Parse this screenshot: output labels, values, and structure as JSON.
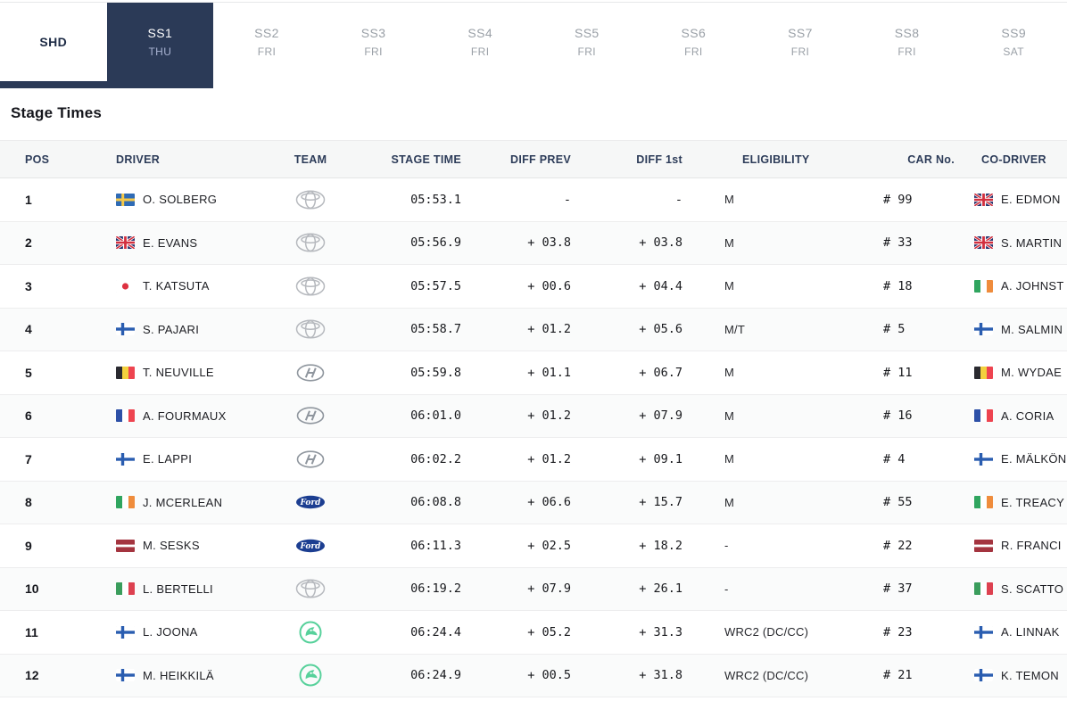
{
  "colors": {
    "accent_navy": "#2b3a57",
    "ford_blue": "#1c3e91",
    "skoda_green": "#57d19b",
    "header_bg": "#f6f7f7",
    "stripe_bg": "#fafbfb"
  },
  "tabs": [
    {
      "id": "shd",
      "label": "SHD",
      "sub": "",
      "active": false
    },
    {
      "id": "ss1",
      "label": "SS1",
      "sub": "THU",
      "active": true
    },
    {
      "id": "ss2",
      "label": "SS2",
      "sub": "FRI",
      "active": false
    },
    {
      "id": "ss3",
      "label": "SS3",
      "sub": "FRI",
      "active": false
    },
    {
      "id": "ss4",
      "label": "SS4",
      "sub": "FRI",
      "active": false
    },
    {
      "id": "ss5",
      "label": "SS5",
      "sub": "FRI",
      "active": false
    },
    {
      "id": "ss6",
      "label": "SS6",
      "sub": "FRI",
      "active": false
    },
    {
      "id": "ss7",
      "label": "SS7",
      "sub": "FRI",
      "active": false
    },
    {
      "id": "ss8",
      "label": "SS8",
      "sub": "FRI",
      "active": false
    },
    {
      "id": "ss9",
      "label": "SS9",
      "sub": "SAT",
      "active": false
    }
  ],
  "title": "Stage Times",
  "table": {
    "columns": [
      "POS",
      "DRIVER",
      "TEAM",
      "STAGE TIME",
      "DIFF PREV",
      "DIFF 1st",
      "ELIGIBILITY",
      "CAR No.",
      "CO-DRIVER"
    ],
    "rows": [
      {
        "pos": "1",
        "driver_flag": "se",
        "driver": "O. SOLBERG",
        "team": "toyota",
        "team_name": "Toyota",
        "stage_time": "05:53.1",
        "diff_prev": "-",
        "diff_first": "-",
        "eligibility": "M",
        "car_no": "# 99",
        "codriver_flag": "gb",
        "codriver": "E. EDMON"
      },
      {
        "pos": "2",
        "driver_flag": "gb",
        "driver": "E. EVANS",
        "team": "toyota",
        "team_name": "Toyota",
        "stage_time": "05:56.9",
        "diff_prev": "+ 03.8",
        "diff_first": "+ 03.8",
        "eligibility": "M",
        "car_no": "# 33",
        "codriver_flag": "gb",
        "codriver": "S. MARTIN"
      },
      {
        "pos": "3",
        "driver_flag": "jp",
        "driver": "T. KATSUTA",
        "team": "toyota",
        "team_name": "Toyota",
        "stage_time": "05:57.5",
        "diff_prev": "+ 00.6",
        "diff_first": "+ 04.4",
        "eligibility": "M",
        "car_no": "# 18",
        "codriver_flag": "ie",
        "codriver": "A. JOHNST"
      },
      {
        "pos": "4",
        "driver_flag": "fi",
        "driver": "S. PAJARI",
        "team": "toyota",
        "team_name": "Toyota",
        "stage_time": "05:58.7",
        "diff_prev": "+ 01.2",
        "diff_first": "+ 05.6",
        "eligibility": "M/T",
        "car_no": "# 5",
        "codriver_flag": "fi",
        "codriver": "M. SALMIN"
      },
      {
        "pos": "5",
        "driver_flag": "be",
        "driver": "T. NEUVILLE",
        "team": "hyundai",
        "team_name": "Hyundai",
        "stage_time": "05:59.8",
        "diff_prev": "+ 01.1",
        "diff_first": "+ 06.7",
        "eligibility": "M",
        "car_no": "# 11",
        "codriver_flag": "be",
        "codriver": "M. WYDAE"
      },
      {
        "pos": "6",
        "driver_flag": "fr",
        "driver": "A. FOURMAUX",
        "team": "hyundai",
        "team_name": "Hyundai",
        "stage_time": "06:01.0",
        "diff_prev": "+ 01.2",
        "diff_first": "+ 07.9",
        "eligibility": "M",
        "car_no": "# 16",
        "codriver_flag": "fr",
        "codriver": "A. CORIA"
      },
      {
        "pos": "7",
        "driver_flag": "fi",
        "driver": "E. LAPPI",
        "team": "hyundai",
        "team_name": "Hyundai",
        "stage_time": "06:02.2",
        "diff_prev": "+ 01.2",
        "diff_first": "+ 09.1",
        "eligibility": "M",
        "car_no": "# 4",
        "codriver_flag": "fi",
        "codriver": "E. MÄLKÖN"
      },
      {
        "pos": "8",
        "driver_flag": "ie",
        "driver": "J. MCERLEAN",
        "team": "ford",
        "team_name": "Ford",
        "stage_time": "06:08.8",
        "diff_prev": "+ 06.6",
        "diff_first": "+ 15.7",
        "eligibility": "M",
        "car_no": "# 55",
        "codriver_flag": "ie",
        "codriver": "E. TREACY"
      },
      {
        "pos": "9",
        "driver_flag": "lv",
        "driver": "M. SESKS",
        "team": "ford",
        "team_name": "Ford",
        "stage_time": "06:11.3",
        "diff_prev": "+ 02.5",
        "diff_first": "+ 18.2",
        "eligibility": "-",
        "car_no": "# 22",
        "codriver_flag": "lv",
        "codriver": "R. FRANCI"
      },
      {
        "pos": "10",
        "driver_flag": "it",
        "driver": "L. BERTELLI",
        "team": "toyota",
        "team_name": "Toyota",
        "stage_time": "06:19.2",
        "diff_prev": "+ 07.9",
        "diff_first": "+ 26.1",
        "eligibility": "-",
        "car_no": "# 37",
        "codriver_flag": "it",
        "codriver": "S. SCATTO"
      },
      {
        "pos": "11",
        "driver_flag": "fi",
        "driver": "L. JOONA",
        "team": "skoda",
        "team_name": "Škoda",
        "stage_time": "06:24.4",
        "diff_prev": "+ 05.2",
        "diff_first": "+ 31.3",
        "eligibility": "WRC2 (DC/CC)",
        "car_no": "# 23",
        "codriver_flag": "fi",
        "codriver": "A. LINNAK"
      },
      {
        "pos": "12",
        "driver_flag": "fi",
        "driver": "M. HEIKKILÄ",
        "team": "skoda",
        "team_name": "Škoda",
        "stage_time": "06:24.9",
        "diff_prev": "+ 00.5",
        "diff_first": "+ 31.8",
        "eligibility": "WRC2 (DC/CC)",
        "car_no": "# 21",
        "codriver_flag": "fi",
        "codriver": "K. TEMON"
      }
    ]
  }
}
